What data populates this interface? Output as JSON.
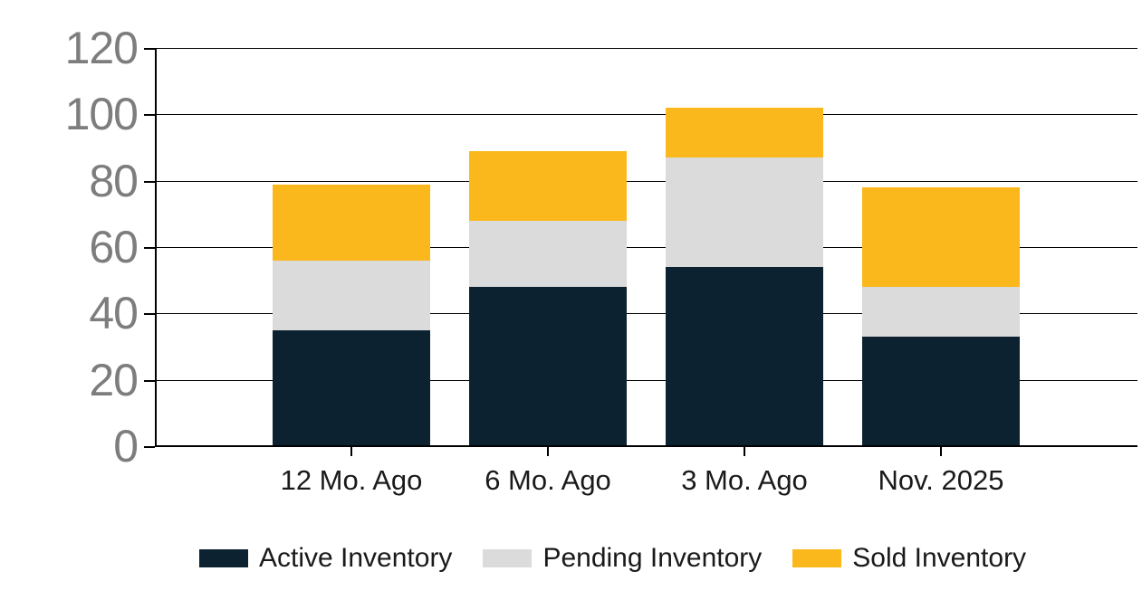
{
  "chart_data": {
    "type": "bar",
    "stacked": true,
    "title": "",
    "xlabel": "",
    "ylabel": "",
    "categories": [
      "12 Mo. Ago",
      "6 Mo. Ago",
      "3 Mo. Ago",
      "Nov. 2025"
    ],
    "series": [
      {
        "name": "Active Inventory",
        "color": "#0D2230",
        "values": [
          35,
          48,
          54,
          33
        ]
      },
      {
        "name": "Pending Inventory",
        "color": "#DBDBDB",
        "values": [
          21,
          20,
          33,
          15
        ]
      },
      {
        "name": "Sold Inventory",
        "color": "#FBB81D",
        "values": [
          23,
          21,
          15,
          30
        ]
      }
    ],
    "totals": [
      79,
      89,
      102,
      78
    ],
    "ylim": [
      0,
      120
    ],
    "yticks": [
      0,
      20,
      40,
      60,
      80,
      100,
      120
    ],
    "grid": true,
    "legend_position": "bottom"
  },
  "colors": {
    "background": "#FFFFFF",
    "axis": "#000000",
    "gridline": "#000000",
    "y_tick_label": "#7D7D7D",
    "x_tick_label": "#1A1A1A",
    "legend_text": "#1A1A1A"
  }
}
